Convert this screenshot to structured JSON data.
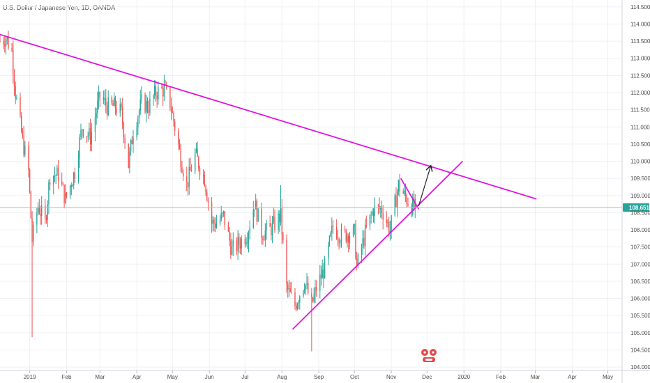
{
  "header": {
    "title": "U.S. Dollar / Japanese Yen, 1D, OANDA"
  },
  "colors": {
    "up": "#26a69a",
    "down": "#ef5350",
    "trendline": "#e014e0",
    "price_line": "#7fd1c8",
    "badge": "#26a69a",
    "grid": "#eef0f3",
    "axis_text": "#4a4a4a",
    "arrow": "#222222"
  },
  "current_price_label": "108.651",
  "chart_data": {
    "type": "candlestick",
    "title": "U.S. Dollar / Japanese Yen, 1D, OANDA",
    "xlabel": "",
    "ylabel": "",
    "ylim": [
      103.9,
      114.7
    ],
    "xlim": [
      "2018-12-07",
      "2020-05-13"
    ],
    "y_ticks": [
      "104.000",
      "104.500",
      "105.000",
      "105.500",
      "106.000",
      "106.500",
      "107.000",
      "107.500",
      "108.000",
      "108.500",
      "109.000",
      "109.500",
      "110.000",
      "110.500",
      "111.000",
      "111.500",
      "112.000",
      "112.500",
      "113.000",
      "113.500",
      "114.000",
      "114.500"
    ],
    "x_ticks": [
      {
        "date": "2019-01-01",
        "label": "2019"
      },
      {
        "date": "2019-02-01",
        "label": "Feb"
      },
      {
        "date": "2019-03-01",
        "label": "Mar"
      },
      {
        "date": "2019-04-01",
        "label": "Apr"
      },
      {
        "date": "2019-05-01",
        "label": "May"
      },
      {
        "date": "2019-06-01",
        "label": "Jun"
      },
      {
        "date": "2019-07-01",
        "label": "Jul"
      },
      {
        "date": "2019-08-01",
        "label": "Aug"
      },
      {
        "date": "2019-09-01",
        "label": "Sep"
      },
      {
        "date": "2019-10-01",
        "label": "Oct"
      },
      {
        "date": "2019-11-01",
        "label": "Nov"
      },
      {
        "date": "2019-12-01",
        "label": "Dec"
      },
      {
        "date": "2020-01-01",
        "label": "2020"
      },
      {
        "date": "2020-02-01",
        "label": "Feb"
      },
      {
        "date": "2020-03-01",
        "label": "Mar"
      },
      {
        "date": "2020-04-01",
        "label": "Apr"
      },
      {
        "date": "2020-05-01",
        "label": "May"
      }
    ],
    "series": [
      {
        "price_path": [
          [
            "2018-12-07",
            113.5
          ],
          [
            "2018-12-12",
            113.6
          ],
          [
            "2018-12-17",
            113.2
          ],
          [
            "2018-12-20",
            112.0
          ],
          [
            "2018-12-26",
            110.6
          ],
          [
            "2018-12-31",
            109.7
          ],
          [
            "2019-01-03",
            107.7
          ],
          [
            "2019-01-08",
            108.7
          ],
          [
            "2019-01-14",
            108.2
          ],
          [
            "2019-01-18",
            109.6
          ],
          [
            "2019-01-25",
            109.6
          ],
          [
            "2019-01-31",
            108.9
          ],
          [
            "2019-02-08",
            109.7
          ],
          [
            "2019-02-14",
            111.0
          ],
          [
            "2019-02-21",
            110.7
          ],
          [
            "2019-03-01",
            111.9
          ],
          [
            "2019-03-07",
            111.6
          ],
          [
            "2019-03-14",
            111.6
          ],
          [
            "2019-03-19",
            111.4
          ],
          [
            "2019-03-25",
            109.9
          ],
          [
            "2019-03-29",
            110.9
          ],
          [
            "2019-04-05",
            111.7
          ],
          [
            "2019-04-11",
            111.6
          ],
          [
            "2019-04-17",
            112.0
          ],
          [
            "2019-04-24",
            112.1
          ],
          [
            "2019-04-29",
            111.7
          ],
          [
            "2019-05-03",
            111.0
          ],
          [
            "2019-05-08",
            110.1
          ],
          [
            "2019-05-13",
            109.3
          ],
          [
            "2019-05-20",
            110.2
          ],
          [
            "2019-05-28",
            109.5
          ],
          [
            "2019-06-03",
            108.2
          ],
          [
            "2019-06-07",
            108.2
          ],
          [
            "2019-06-13",
            108.4
          ],
          [
            "2019-06-20",
            107.4
          ],
          [
            "2019-06-26",
            107.6
          ],
          [
            "2019-07-03",
            107.9
          ],
          [
            "2019-07-09",
            108.8
          ],
          [
            "2019-07-15",
            107.9
          ],
          [
            "2019-07-22",
            108.0
          ],
          [
            "2019-07-31",
            108.4
          ],
          [
            "2019-08-05",
            106.3
          ],
          [
            "2019-08-12",
            105.8
          ],
          [
            "2019-08-20",
            106.5
          ],
          [
            "2019-08-26",
            105.8
          ],
          [
            "2019-08-30",
            106.3
          ],
          [
            "2019-09-06",
            106.9
          ],
          [
            "2019-09-13",
            108.1
          ],
          [
            "2019-09-20",
            107.8
          ],
          [
            "2019-09-26",
            107.9
          ],
          [
            "2019-10-01",
            107.9
          ],
          [
            "2019-10-03",
            106.9
          ],
          [
            "2019-10-10",
            107.9
          ],
          [
            "2019-10-17",
            108.6
          ],
          [
            "2019-10-24",
            108.6
          ],
          [
            "2019-10-31",
            108.0
          ],
          [
            "2019-11-07",
            109.3
          ],
          [
            "2019-11-12",
            109.0
          ],
          [
            "2019-11-18",
            108.7
          ],
          [
            "2019-11-22",
            108.6
          ]
        ]
      }
    ],
    "annotations": [
      {
        "type": "trendline",
        "label": "upper descending trendline",
        "x1": "2018-11-27",
        "y1": 113.8,
        "x2": "2020-03-02",
        "y2": 108.9
      },
      {
        "type": "trendline",
        "label": "ascending support trendline",
        "x1": "2019-08-10",
        "y1": 105.1,
        "x2": "2019-12-31",
        "y2": 110.0
      },
      {
        "type": "trendline",
        "label": "short descending line",
        "x1": "2019-11-09",
        "y1": 109.5,
        "x2": "2019-11-24",
        "y2": 108.6
      },
      {
        "type": "arrow",
        "label": "projected breakout",
        "x1": "2019-11-24",
        "y1": 108.7,
        "x2": "2019-12-04",
        "y2": 109.85
      },
      {
        "type": "hline",
        "label": "current price",
        "y": 108.651
      }
    ]
  }
}
